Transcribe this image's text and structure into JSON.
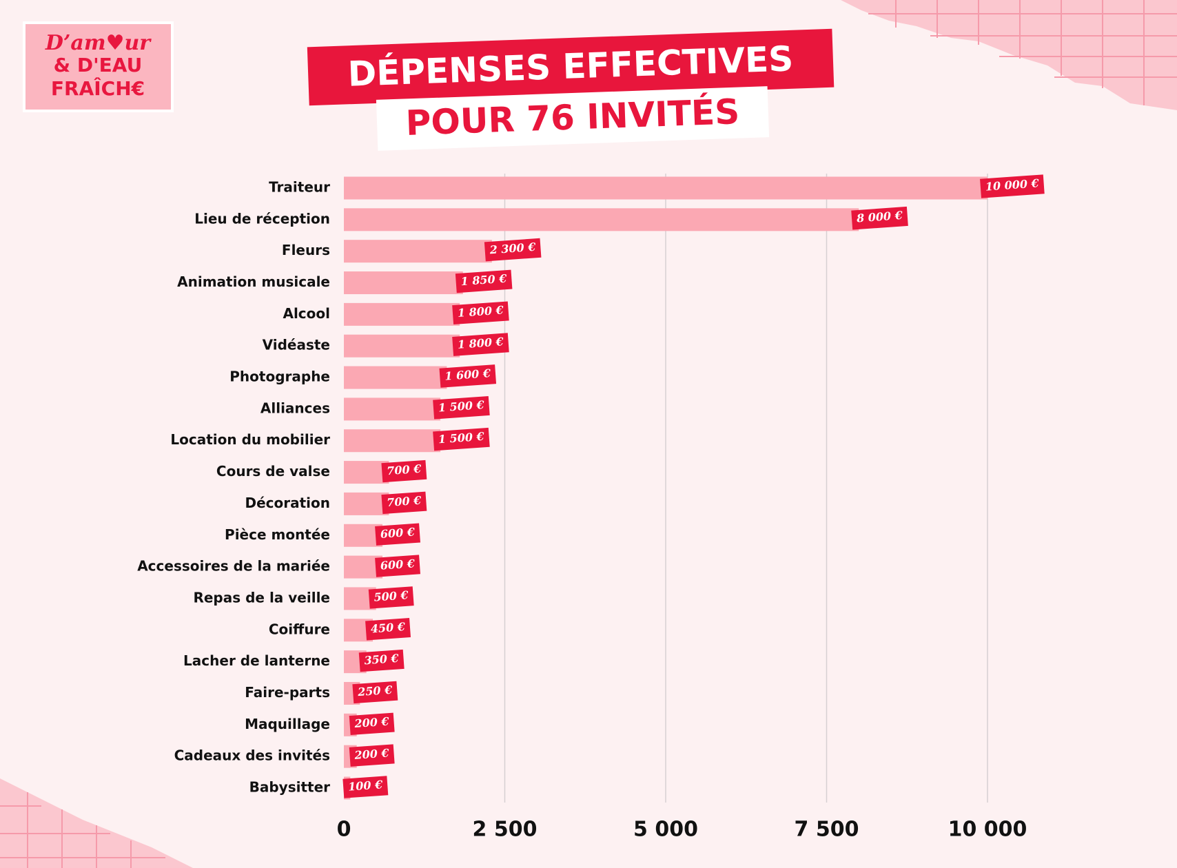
{
  "logo": {
    "lines": [
      "D’am♥ur",
      "& D'EAU",
      "FRAÎCH€"
    ]
  },
  "chart_data": {
    "type": "bar",
    "orientation": "horizontal",
    "title": "DÉPENSES EFFECTIVES",
    "subtitle": "POUR 76 INVITÉS",
    "categories": [
      "Traiteur",
      "Lieu de réception",
      "Fleurs",
      "Animation musicale",
      "Alcool",
      "Vidéaste",
      "Photographe",
      "Alliances",
      "Location du mobilier",
      "Cours de valse",
      "Décoration",
      "Pièce montée",
      "Accessoires de la mariée",
      "Repas de la veille",
      "Coiffure",
      "Lacher de lanterne",
      "Faire-parts",
      "Maquillage",
      "Cadeaux des invités",
      "Babysitter"
    ],
    "values": [
      10000,
      8000,
      2300,
      1850,
      1800,
      1800,
      1600,
      1500,
      1500,
      700,
      700,
      600,
      600,
      500,
      450,
      350,
      250,
      200,
      200,
      100
    ],
    "value_labels": [
      "10 000 €",
      "8 000 €",
      "2 300 €",
      "1 850 €",
      "1 800 €",
      "1 800 €",
      "1 600 €",
      "1 500 €",
      "1 500 €",
      "700 €",
      "700 €",
      "600 €",
      "600 €",
      "500 €",
      "450 €",
      "350 €",
      "250 €",
      "200 €",
      "200 €",
      "100 €"
    ],
    "color": "#fba8b3",
    "label_color": "#e8163c",
    "xlim": [
      0,
      10000
    ],
    "xticks": [
      0,
      {
        "value": 2500,
        "label": "2 500"
      },
      {
        "value": 5000,
        "label": "5 000"
      },
      {
        "value": 7500,
        "label": "7 500"
      },
      {
        "value": 10000,
        "label": "10 000"
      }
    ],
    "grid": true
  }
}
